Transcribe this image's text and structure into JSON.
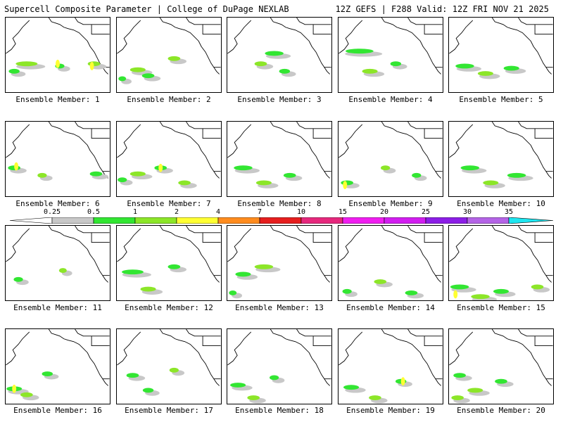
{
  "header": {
    "left_title": "Supercell Composite Parameter | College of DuPage NEXLAB",
    "right_title": "12Z GEFS | F288 Valid: 12Z FRI NOV 21 2025"
  },
  "colorbar": {
    "labels": [
      "0.25",
      "0.5",
      "1",
      "2",
      "4",
      "7",
      "10",
      "15",
      "20",
      "25",
      "30",
      "35"
    ],
    "colors": [
      "#ffffff",
      "#c8c8c8",
      "#32e632",
      "#8ce628",
      "#ffff32",
      "#ff8c1e",
      "#e61e1e",
      "#e6287d",
      "#f01ef0",
      "#d21ef0",
      "#8c1ee6",
      "#b464e6",
      "#1ee6f0"
    ]
  },
  "members": [
    {
      "label": "Ensemble Member: 1",
      "cells": [
        [
          0.08,
          0.72,
          0.07,
          0.3
        ],
        [
          0.2,
          0.62,
          0.14,
          0.3
        ],
        [
          0.52,
          0.65,
          0.06,
          0.3
        ],
        [
          0.85,
          0.62,
          0.08,
          0.3
        ]
      ],
      "hot": [
        [
          0.5,
          0.62
        ],
        [
          0.83,
          0.65
        ]
      ]
    },
    {
      "label": "Ensemble Member: 2",
      "cells": [
        [
          0.05,
          0.82,
          0.05,
          0.3
        ],
        [
          0.2,
          0.7,
          0.1,
          0.3
        ],
        [
          0.3,
          0.78,
          0.08,
          0.3
        ],
        [
          0.55,
          0.55,
          0.08,
          0.3
        ]
      ],
      "hot": []
    },
    {
      "label": "Ensemble Member: 3",
      "cells": [
        [
          0.45,
          0.48,
          0.12,
          0.3
        ],
        [
          0.32,
          0.62,
          0.08,
          0.3
        ],
        [
          0.55,
          0.72,
          0.07,
          0.3
        ]
      ],
      "hot": []
    },
    {
      "label": "Ensemble Member: 4",
      "cells": [
        [
          0.2,
          0.45,
          0.18,
          0.3
        ],
        [
          0.3,
          0.72,
          0.1,
          0.3
        ],
        [
          0.55,
          0.62,
          0.07,
          0.3
        ]
      ],
      "hot": []
    },
    {
      "label": "Ensemble Member: 5",
      "cells": [
        [
          0.15,
          0.65,
          0.12,
          0.3
        ],
        [
          0.35,
          0.75,
          0.1,
          0.3
        ],
        [
          0.6,
          0.68,
          0.1,
          0.3
        ]
      ],
      "hot": []
    },
    {
      "label": "Ensemble Member: 6",
      "cells": [
        [
          0.08,
          0.62,
          0.08,
          0.3
        ],
        [
          0.35,
          0.72,
          0.06,
          0.3
        ],
        [
          0.87,
          0.7,
          0.08,
          0.3
        ]
      ],
      "hot": [
        [
          0.1,
          0.6
        ]
      ]
    },
    {
      "label": "Ensemble Member: 7",
      "cells": [
        [
          0.05,
          0.78,
          0.06,
          0.3
        ],
        [
          0.2,
          0.7,
          0.1,
          0.3
        ],
        [
          0.42,
          0.62,
          0.08,
          0.3
        ],
        [
          0.65,
          0.82,
          0.08,
          0.3
        ]
      ],
      "hot": [
        [
          0.42,
          0.62
        ]
      ]
    },
    {
      "label": "Ensemble Member: 8",
      "cells": [
        [
          0.15,
          0.62,
          0.12,
          0.3
        ],
        [
          0.35,
          0.82,
          0.1,
          0.3
        ],
        [
          0.6,
          0.72,
          0.08,
          0.3
        ]
      ],
      "hot": []
    },
    {
      "label": "Ensemble Member: 9",
      "cells": [
        [
          0.08,
          0.82,
          0.08,
          0.3
        ],
        [
          0.45,
          0.62,
          0.06,
          0.3
        ],
        [
          0.75,
          0.72,
          0.06,
          0.3
        ]
      ],
      "hot": [
        [
          0.06,
          0.85
        ]
      ]
    },
    {
      "label": "Ensemble Member: 10",
      "cells": [
        [
          0.2,
          0.62,
          0.12,
          0.3
        ],
        [
          0.4,
          0.82,
          0.1,
          0.3
        ],
        [
          0.65,
          0.72,
          0.12,
          0.3
        ]
      ],
      "hot": []
    },
    {
      "label": "Ensemble Member: 11",
      "cells": [
        [
          0.12,
          0.72,
          0.06,
          0.3
        ],
        [
          0.55,
          0.6,
          0.05,
          0.3
        ]
      ],
      "hot": []
    },
    {
      "label": "Ensemble Member: 12",
      "cells": [
        [
          0.15,
          0.62,
          0.14,
          0.3
        ],
        [
          0.3,
          0.85,
          0.1,
          0.3
        ],
        [
          0.55,
          0.55,
          0.08,
          0.3
        ]
      ],
      "hot": []
    },
    {
      "label": "Ensemble Member: 13",
      "cells": [
        [
          0.15,
          0.65,
          0.1,
          0.3
        ],
        [
          0.35,
          0.55,
          0.12,
          0.3
        ],
        [
          0.05,
          0.9,
          0.05,
          0.3
        ]
      ],
      "hot": []
    },
    {
      "label": "Ensemble Member: 14",
      "cells": [
        [
          0.08,
          0.88,
          0.06,
          0.3
        ],
        [
          0.4,
          0.75,
          0.08,
          0.3
        ],
        [
          0.7,
          0.9,
          0.08,
          0.3
        ]
      ],
      "hot": []
    },
    {
      "label": "Ensemble Member: 15",
      "cells": [
        [
          0.1,
          0.82,
          0.12,
          0.3
        ],
        [
          0.3,
          0.95,
          0.12,
          0.3
        ],
        [
          0.5,
          0.88,
          0.1,
          0.3
        ],
        [
          0.85,
          0.82,
          0.08,
          0.3
        ]
      ],
      "hot": [
        [
          0.06,
          0.92
        ]
      ]
    },
    {
      "label": "Ensemble Member: 16",
      "cells": [
        [
          0.08,
          0.8,
          0.1,
          0.3
        ],
        [
          0.2,
          0.88,
          0.08,
          0.3
        ],
        [
          0.4,
          0.6,
          0.07,
          0.3
        ]
      ],
      "hot": [
        [
          0.08,
          0.8
        ]
      ]
    },
    {
      "label": "Ensemble Member: 17",
      "cells": [
        [
          0.15,
          0.62,
          0.08,
          0.3
        ],
        [
          0.55,
          0.55,
          0.06,
          0.3
        ],
        [
          0.3,
          0.82,
          0.07,
          0.3
        ]
      ],
      "hot": []
    },
    {
      "label": "Ensemble Member: 18",
      "cells": [
        [
          0.1,
          0.75,
          0.1,
          0.3
        ],
        [
          0.25,
          0.92,
          0.08,
          0.3
        ],
        [
          0.45,
          0.65,
          0.06,
          0.3
        ]
      ],
      "hot": []
    },
    {
      "label": "Ensemble Member: 19",
      "cells": [
        [
          0.12,
          0.78,
          0.1,
          0.3
        ],
        [
          0.35,
          0.92,
          0.08,
          0.3
        ],
        [
          0.6,
          0.7,
          0.07,
          0.3
        ]
      ],
      "hot": [
        [
          0.62,
          0.7
        ]
      ]
    },
    {
      "label": "Ensemble Member: 20",
      "cells": [
        [
          0.1,
          0.62,
          0.08,
          0.3
        ],
        [
          0.25,
          0.82,
          0.1,
          0.3
        ],
        [
          0.5,
          0.7,
          0.08,
          0.3
        ],
        [
          0.08,
          0.92,
          0.08,
          0.3
        ]
      ],
      "hot": []
    }
  ]
}
